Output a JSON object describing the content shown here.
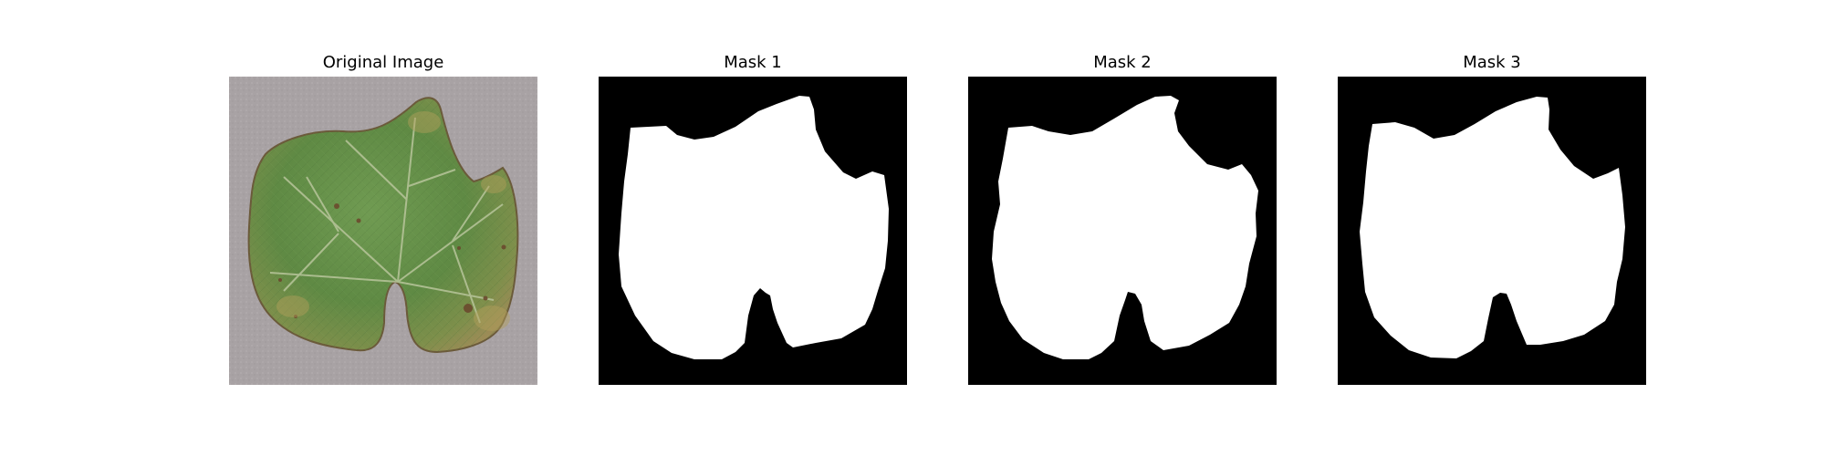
{
  "figure": {
    "panels": [
      {
        "title": "Original Image",
        "kind": "photo",
        "subject": "leaf-photo"
      },
      {
        "title": "Mask 1",
        "kind": "mask",
        "subject": "leaf-mask"
      },
      {
        "title": "Mask 2",
        "kind": "mask",
        "subject": "leaf-mask"
      },
      {
        "title": "Mask 3",
        "kind": "mask",
        "subject": "leaf-mask"
      }
    ],
    "colors": {
      "mask_background": "#000000",
      "mask_foreground": "#ffffff",
      "photo_background": "#a8a2a4",
      "leaf_green": "#5f8a44",
      "leaf_dark_green": "#446a31",
      "leaf_yellow": "#b4a05c",
      "leaf_brown": "#7f5a3b"
    }
  }
}
